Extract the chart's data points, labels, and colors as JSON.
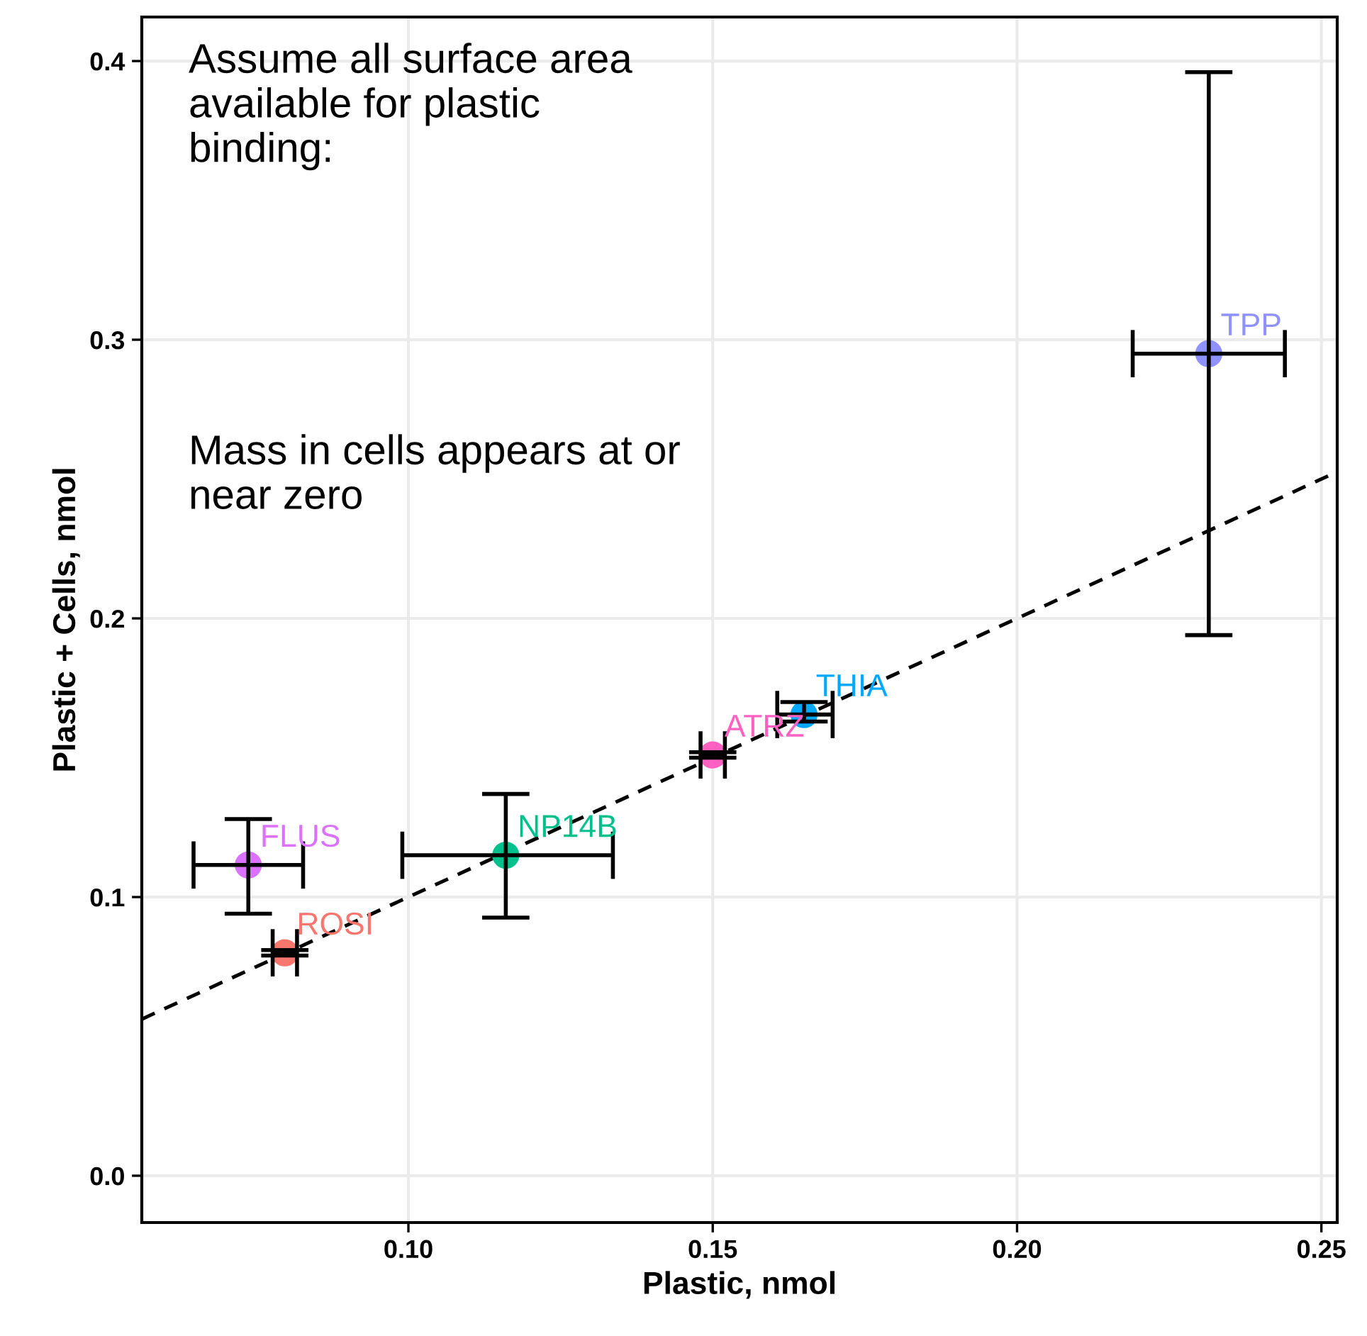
{
  "chart_data": {
    "type": "scatter",
    "xlabel": "Plastic, nmol",
    "ylabel": "Plastic + Cells, nmol",
    "xlim": [
      0.0562,
      0.2526
    ],
    "ylim": [
      -0.0168,
      0.4158
    ],
    "xticks": [
      {
        "value": 0.1,
        "label": "0.10"
      },
      {
        "value": 0.15,
        "label": "0.15"
      },
      {
        "value": 0.2,
        "label": "0.20"
      },
      {
        "value": 0.25,
        "label": "0.25"
      }
    ],
    "yticks": [
      {
        "value": 0.0,
        "label": "0.0"
      },
      {
        "value": 0.1,
        "label": "0.1"
      },
      {
        "value": 0.2,
        "label": "0.2"
      },
      {
        "value": 0.3,
        "label": "0.3"
      },
      {
        "value": 0.4,
        "label": "0.4"
      }
    ],
    "grid": true,
    "legend": false,
    "marker": "circle",
    "series": [
      {
        "name": "ROSI",
        "color": "#f8766d",
        "x": [
          0.0797
        ],
        "values": [
          0.08
        ],
        "errors": [
          0.001
        ],
        "xerrors": [
          0.002
        ]
      },
      {
        "name": "FLUS",
        "color": "#db72fb",
        "x": [
          0.0737
        ],
        "values": [
          0.1115
        ],
        "errors": [
          [
            0.094,
            0.128
          ]
        ],
        "xerrors": [
          0.009
        ]
      },
      {
        "name": "NP14B",
        "color": "#00c08b",
        "x": [
          0.116
        ],
        "values": [
          0.115
        ],
        "errors": [
          [
            0.0926,
            0.137
          ]
        ],
        "xerrors": [
          [
            0.099,
            0.1336
          ]
        ]
      },
      {
        "name": "ATRZ",
        "color": "#ff61c3",
        "x": [
          0.15
        ],
        "values": [
          0.151
        ],
        "errors": [
          0.001
        ],
        "xerrors": [
          0.002
        ]
      },
      {
        "name": "THIA",
        "color": "#00a9ff",
        "x": [
          0.165
        ],
        "values": [
          0.1655
        ],
        "errors": [
          [
            0.163,
            0.17
          ]
        ],
        "xerrors": [
          [
            0.1606,
            0.1697
          ]
        ]
      },
      {
        "name": "TPP",
        "color": "#8f91ff",
        "x": [
          0.2315
        ],
        "values": [
          0.295
        ],
        "errors": [
          [
            0.194,
            0.396
          ]
        ],
        "xerrors": [
          [
            0.219,
            0.244
          ]
        ]
      },
      {
        "type": "line",
        "color": "#000000",
        "line_style": "dashed",
        "marker": "none",
        "x": [
          0.0562,
          0.2526
        ],
        "values": [
          0.0562,
          0.2526
        ]
      }
    ],
    "annotations": [
      "Assume all surface area\navailable for plastic\nbinding:",
      "Mass in cells appears at or\nnear zero"
    ]
  }
}
